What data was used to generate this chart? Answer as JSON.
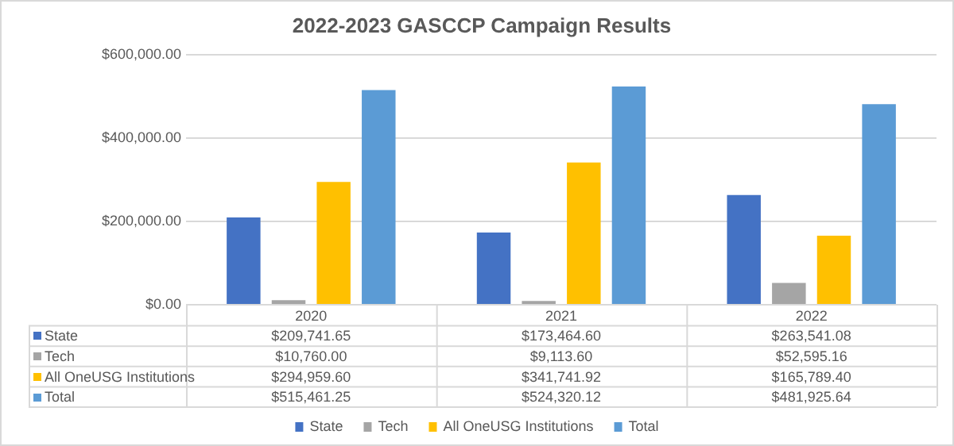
{
  "chart_data": {
    "type": "bar",
    "title": "2022-2023 GASCCP Campaign Results",
    "categories": [
      "2020",
      "2021",
      "2022"
    ],
    "series": [
      {
        "name": "State",
        "color": "#4472c4",
        "values": [
          209741.65,
          173464.6,
          263541.08
        ],
        "value_labels": [
          "$209,741.65",
          "$173,464.60",
          "$263,541.08"
        ]
      },
      {
        "name": "Tech",
        "color": "#a5a5a5",
        "values": [
          10760.0,
          9113.6,
          52595.16
        ],
        "value_labels": [
          "$10,760.00",
          "$9,113.60",
          "$52,595.16"
        ]
      },
      {
        "name": "All OneUSG Institutions",
        "color": "#ffc000",
        "values": [
          294959.6,
          341741.92,
          165789.4
        ],
        "value_labels": [
          "$294,959.60",
          "$341,741.92",
          "$165,789.40"
        ]
      },
      {
        "name": "Total",
        "color": "#5b9bd5",
        "values": [
          515461.25,
          524320.12,
          481925.64
        ],
        "value_labels": [
          "$515,461.25",
          "$524,320.12",
          "$481,925.64"
        ]
      }
    ],
    "ylim": [
      0,
      600000
    ],
    "yticks": [
      {
        "value": 0,
        "label": "$0.00"
      },
      {
        "value": 200000,
        "label": "$200,000.00"
      },
      {
        "value": 400000,
        "label": "$400,000.00"
      },
      {
        "value": 600000,
        "label": "$600,000.00"
      }
    ],
    "grid": "y",
    "legend": "bottom"
  }
}
